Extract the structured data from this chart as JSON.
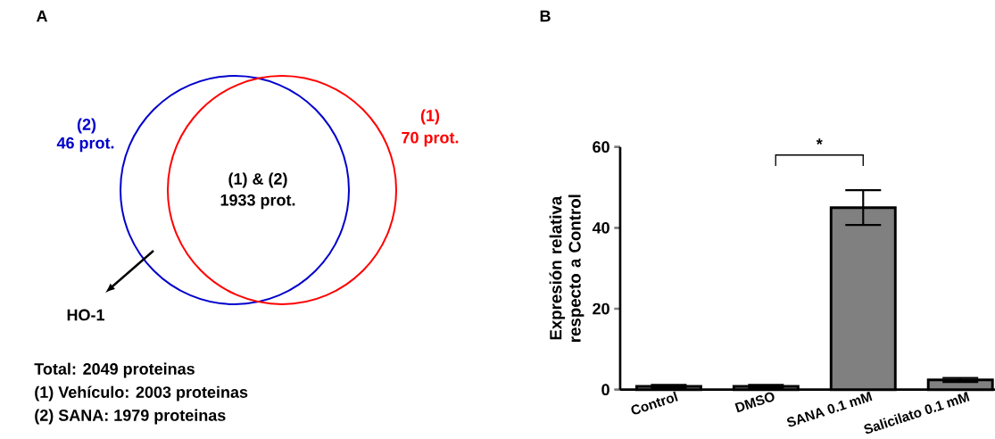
{
  "chart_data": [
    {
      "type": "other",
      "title": "A",
      "annotations": [
        "(2)",
        "46 prot.",
        "(1)",
        "70 prot.",
        "(1) & (2)",
        "1933 prot.",
        "HO-1",
        "Total:  2049 proteinas",
        "(1) Vehículo: 2003 proteinas",
        "(2) SANA: 1979 proteinas"
      ]
    },
    {
      "type": "bar",
      "title": "B",
      "ylabel": "Expresión relativa respecto a Control",
      "categories": [
        "Control",
        "DMSO",
        "SANA 0.1 mM",
        "Salicilato 0.1 mM"
      ],
      "values": [
        0.8,
        0.8,
        45,
        2.4
      ],
      "errors": [
        0.4,
        0.4,
        4.3,
        0.5
      ],
      "color": "#808080",
      "ylim": [
        0,
        60
      ],
      "yticks": [
        0,
        20,
        40,
        60
      ],
      "annotations": [
        "*"
      ]
    }
  ]
}
